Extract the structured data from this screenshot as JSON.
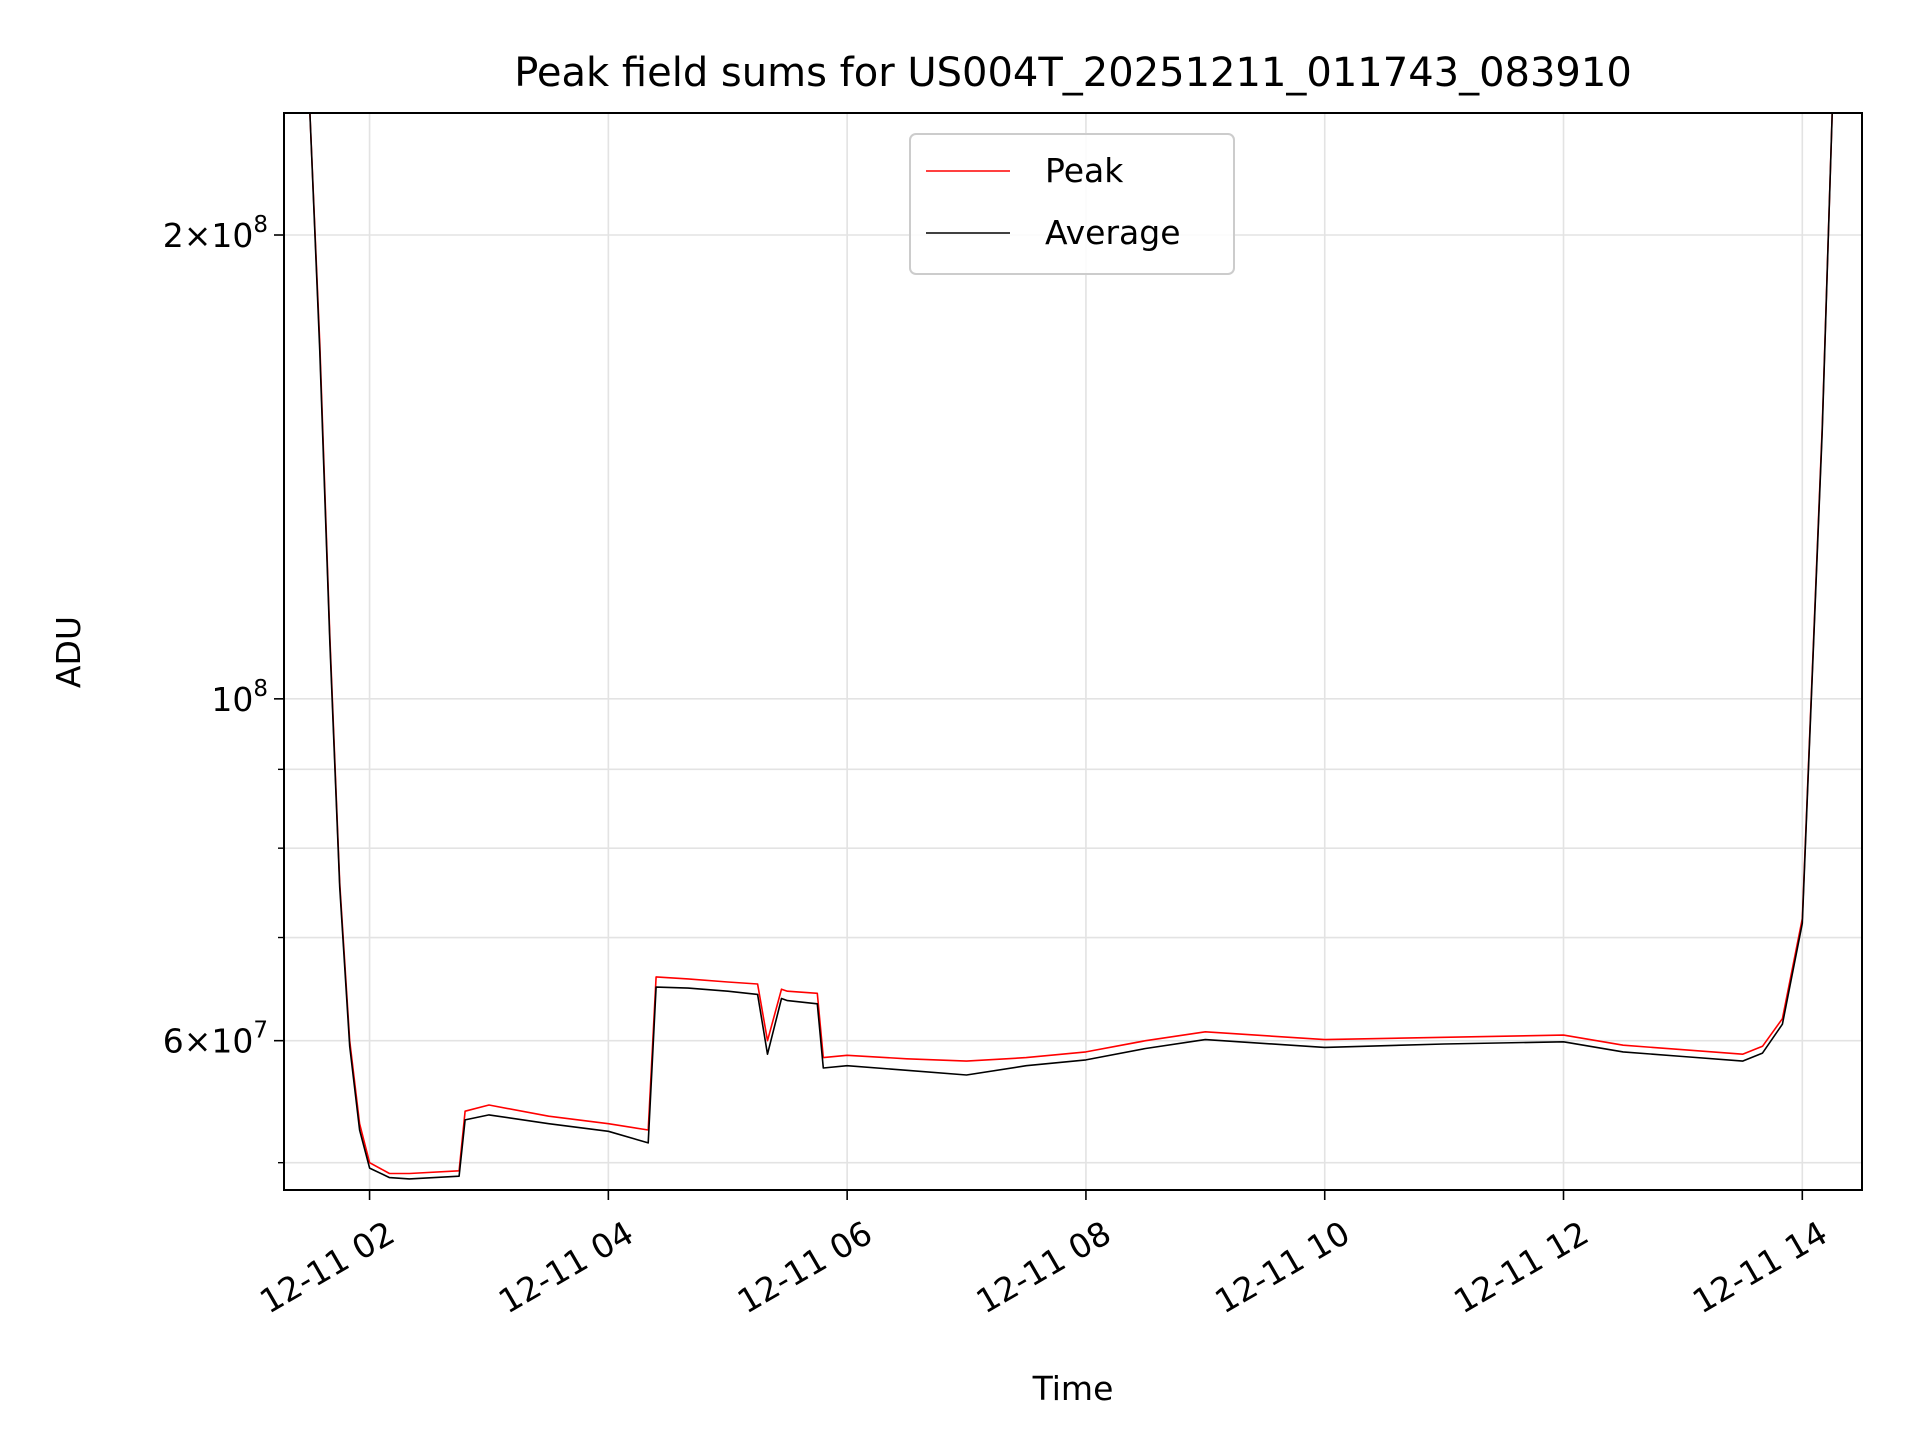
{
  "chart_data": {
    "type": "line",
    "title": "Peak field sums for US004T_20251211_011743_083910",
    "xlabel": "Time",
    "ylabel": "ADU",
    "yscale": "log",
    "xlim": [
      "12-11 01:17",
      "12-11 14:30"
    ],
    "ylim": [
      48000000,
      240000000
    ],
    "grid": true,
    "legend_position": "upper center",
    "x_ticks": [
      "12-11 02",
      "12-11 04",
      "12-11 06",
      "12-11 08",
      "12-11 10",
      "12-11 12",
      "12-11 14"
    ],
    "y_ticks": [
      {
        "value": 60000000,
        "base": "6",
        "exp": "7"
      },
      {
        "value": 100000000,
        "base": "",
        "exp": "8"
      },
      {
        "value": 200000000,
        "base": "2",
        "exp": "8"
      }
    ],
    "y_minor_ticks": [
      50000000,
      70000000,
      80000000,
      90000000
    ],
    "series": [
      {
        "name": "Peak",
        "color": "#ff0000",
        "x": [
          "12-11 01:30",
          "12-11 01:35",
          "12-11 01:40",
          "12-11 01:45",
          "12-11 01:50",
          "12-11 01:55",
          "12-11 02:00",
          "12-11 02:10",
          "12-11 02:20",
          "12-11 02:45",
          "12-11 02:48",
          "12-11 03:00",
          "12-11 03:30",
          "12-11 04:00",
          "12-11 04:20",
          "12-11 04:24",
          "12-11 04:40",
          "12-11 05:00",
          "12-11 05:15",
          "12-11 05:20",
          "12-11 05:27",
          "12-11 05:30",
          "12-11 05:45",
          "12-11 05:48",
          "12-11 06:00",
          "12-11 06:30",
          "12-11 07:00",
          "12-11 07:30",
          "12-11 08:00",
          "12-11 08:30",
          "12-11 09:00",
          "12-11 10:00",
          "12-11 11:00",
          "12-11 12:00",
          "12-11 12:30",
          "12-11 13:00",
          "12-11 13:30",
          "12-11 13:40",
          "12-11 13:50",
          "12-11 14:00",
          "12-11 14:03",
          "12-11 14:10",
          "12-11 14:15"
        ],
        "values": [
          240000000,
          170000000,
          110000000,
          76000000,
          60000000,
          53000000,
          50000000,
          49200000,
          49200000,
          49400000,
          54000000,
          54500000,
          53600000,
          53000000,
          52500000,
          66000000,
          65800000,
          65500000,
          65300000,
          60000000,
          64800000,
          64600000,
          64400000,
          58500000,
          58700000,
          58400000,
          58200000,
          58500000,
          59000000,
          60000000,
          60800000,
          60100000,
          60300000,
          60500000,
          59600000,
          59200000,
          58800000,
          59500000,
          62000000,
          72000000,
          90000000,
          150000000,
          240000000
        ]
      },
      {
        "name": "Average",
        "color": "#000000",
        "x": [
          "12-11 01:30",
          "12-11 01:35",
          "12-11 01:40",
          "12-11 01:45",
          "12-11 01:50",
          "12-11 01:55",
          "12-11 02:00",
          "12-11 02:10",
          "12-11 02:20",
          "12-11 02:45",
          "12-11 02:48",
          "12-11 03:00",
          "12-11 03:30",
          "12-11 04:00",
          "12-11 04:20",
          "12-11 04:24",
          "12-11 04:40",
          "12-11 05:00",
          "12-11 05:15",
          "12-11 05:20",
          "12-11 05:27",
          "12-11 05:30",
          "12-11 05:45",
          "12-11 05:48",
          "12-11 06:00",
          "12-11 06:30",
          "12-11 07:00",
          "12-11 07:30",
          "12-11 08:00",
          "12-11 08:30",
          "12-11 09:00",
          "12-11 10:00",
          "12-11 11:00",
          "12-11 12:00",
          "12-11 12:30",
          "12-11 13:00",
          "12-11 13:30",
          "12-11 13:40",
          "12-11 13:50",
          "12-11 14:00",
          "12-11 14:03",
          "12-11 14:10",
          "12-11 14:15"
        ],
        "values": [
          240000000,
          168000000,
          109000000,
          75500000,
          59500000,
          52500000,
          49600000,
          48900000,
          48800000,
          49000000,
          53300000,
          53700000,
          53000000,
          52400000,
          51500000,
          65000000,
          64900000,
          64600000,
          64300000,
          58800000,
          63900000,
          63700000,
          63400000,
          57600000,
          57800000,
          57400000,
          57000000,
          57800000,
          58300000,
          59300000,
          60100000,
          59400000,
          59700000,
          59900000,
          59000000,
          58600000,
          58200000,
          58900000,
          61500000,
          71500000,
          89500000,
          149000000,
          240000000
        ]
      }
    ]
  }
}
